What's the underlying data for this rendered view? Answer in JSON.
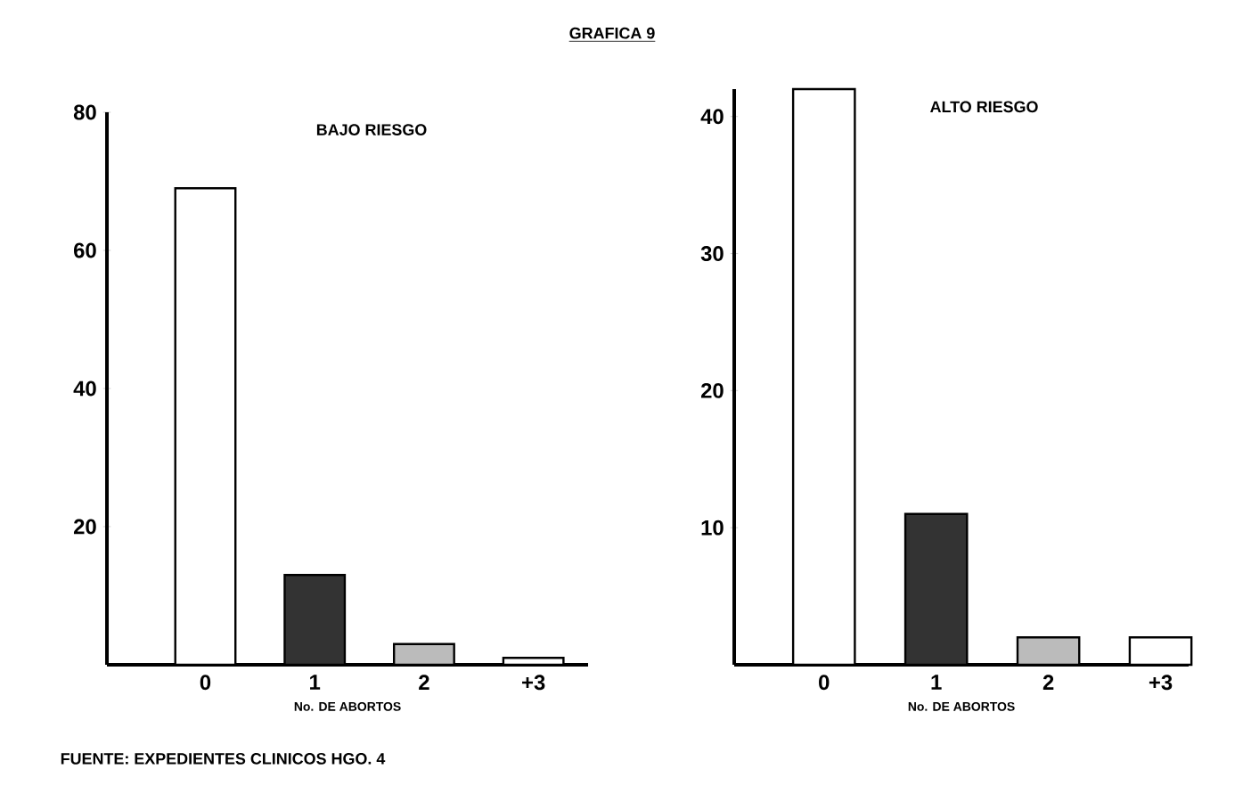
{
  "chart_data": [
    {
      "type": "bar",
      "title": "GRAFICA 9",
      "subtitle": "BAJO RIESGO",
      "xlabel": "No. DE ABORTOS",
      "categories": [
        "0",
        "1",
        "2",
        "+3"
      ],
      "values": [
        69,
        13,
        3,
        1
      ],
      "colors": [
        "#ffffff",
        "#333333",
        "#bbbbbb",
        "#ffffff"
      ],
      "ylim": [
        0,
        80
      ],
      "yticks": [
        20,
        40,
        60,
        80
      ],
      "annotations": [
        "FUENTE: EXPEDIENTES CLINICOS  HGO. 4"
      ]
    },
    {
      "type": "bar",
      "subtitle": "ALTO RIESGO",
      "xlabel": "No. DE ABORTOS",
      "categories": [
        "0",
        "1",
        "2",
        "+3"
      ],
      "values": [
        42,
        11,
        2,
        2
      ],
      "colors": [
        "#ffffff",
        "#333333",
        "#bbbbbb",
        "#ffffff"
      ],
      "ylim": [
        0,
        42
      ],
      "yticks": [
        10,
        20,
        30,
        40
      ]
    }
  ]
}
